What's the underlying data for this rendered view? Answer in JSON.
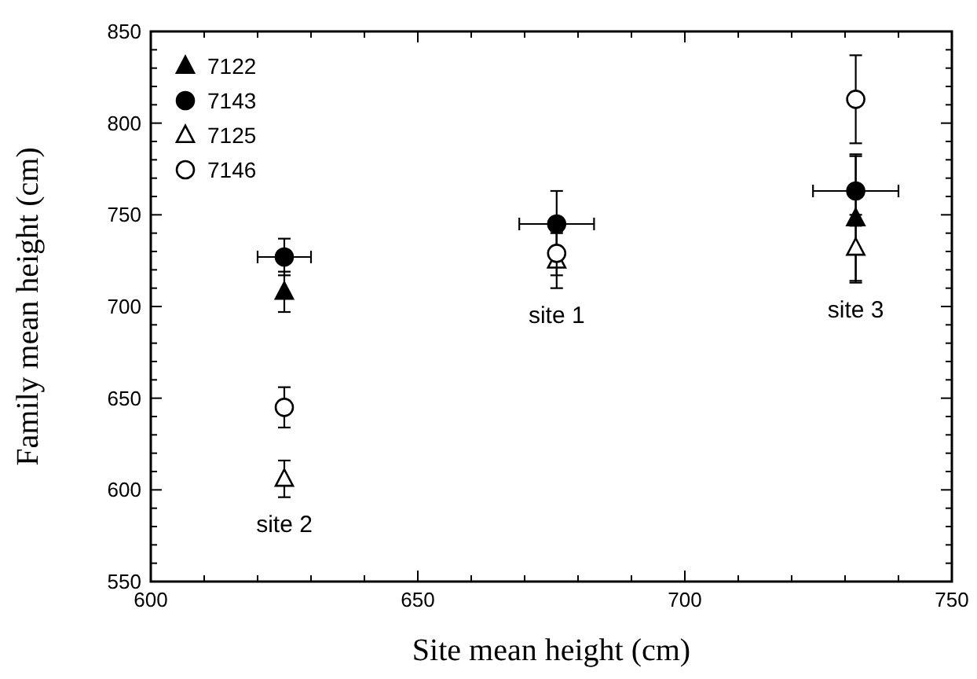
{
  "chart_data": {
    "type": "scatter",
    "xlabel": "Site mean height (cm)",
    "ylabel": "Family mean height (cm)",
    "xlim": [
      600,
      750
    ],
    "ylim": [
      550,
      850
    ],
    "xticks": [
      600,
      {
        "value": 610,
        "label": null
      },
      {
        "value": 620,
        "label": null
      },
      {
        "value": 630,
        "label": null
      },
      {
        "value": 640,
        "label": null
      },
      650,
      {
        "value": 660,
        "label": null
      },
      {
        "value": 670,
        "label": null
      },
      {
        "value": 680,
        "label": null
      },
      {
        "value": 690,
        "label": null
      },
      700,
      {
        "value": 710,
        "label": null
      },
      {
        "value": 720,
        "label": null
      },
      {
        "value": 730,
        "label": null
      },
      {
        "value": 740,
        "label": null
      },
      750
    ],
    "yticks": [
      550,
      {
        "value": 560,
        "label": null
      },
      {
        "value": 570,
        "label": null
      },
      {
        "value": 580,
        "label": null
      },
      {
        "value": 590,
        "label": null
      },
      600,
      {
        "value": 610,
        "label": null
      },
      {
        "value": 620,
        "label": null
      },
      {
        "value": 630,
        "label": null
      },
      {
        "value": 640,
        "label": null
      },
      650,
      {
        "value": 660,
        "label": null
      },
      {
        "value": 670,
        "label": null
      },
      {
        "value": 680,
        "label": null
      },
      {
        "value": 690,
        "label": null
      },
      700,
      {
        "value": 710,
        "label": null
      },
      {
        "value": 720,
        "label": null
      },
      {
        "value": 730,
        "label": null
      },
      {
        "value": 740,
        "label": null
      },
      750,
      {
        "value": 760,
        "label": null
      },
      {
        "value": 770,
        "label": null
      },
      {
        "value": 780,
        "label": null
      },
      {
        "value": 790,
        "label": null
      },
      800,
      {
        "value": 810,
        "label": null
      },
      {
        "value": 820,
        "label": null
      },
      {
        "value": 830,
        "label": null
      },
      {
        "value": 840,
        "label": null
      },
      850
    ],
    "legend": "top left",
    "grid": false,
    "series": [
      {
        "name": "7122",
        "color": "#000000",
        "marker": "triangle",
        "x": [
          625,
          676,
          732
        ],
        "values": [
          708,
          null,
          748
        ],
        "errors": [
          11,
          null,
          35
        ]
      },
      {
        "name": "7143",
        "color": "#000000",
        "marker": "circle",
        "x": [
          625,
          676,
          732
        ],
        "values": [
          727,
          745,
          763
        ],
        "errors": [
          10,
          18,
          19
        ],
        "xerrors": [
          5,
          7,
          8
        ]
      },
      {
        "name": "7125",
        "color": "#ffffff",
        "marker": "triangle",
        "x": [
          625,
          676,
          732
        ],
        "values": [
          606,
          725,
          732
        ],
        "errors": [
          10,
          15,
          18
        ]
      },
      {
        "name": "7146",
        "color": "#ffffff",
        "marker": "circle",
        "x": [
          625,
          676,
          732
        ],
        "values": [
          645,
          729,
          813
        ],
        "errors": [
          11,
          12,
          24
        ]
      }
    ],
    "annotations": [
      "site 2",
      "site 1",
      "site 3"
    ]
  }
}
